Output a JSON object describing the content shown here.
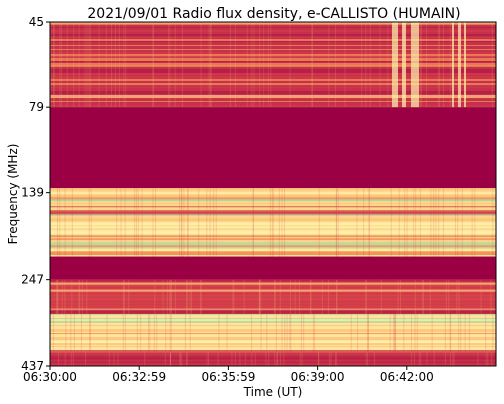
{
  "chart_data": {
    "type": "heatmap",
    "title": "2021/09/01  Radio flux density, e-CALLISTO (HUMAIN)",
    "xlabel": "Time (UT)",
    "ylabel": "Frequency (MHz)",
    "x_ticks": [
      "06:30:00",
      "06:32:59",
      "06:35:59",
      "06:39:00",
      "06:42:00"
    ],
    "y_ticks": [
      "45",
      "79",
      "139",
      "247",
      "437"
    ],
    "y_scale": "log",
    "ylim": [
      45,
      437
    ],
    "colormap": "Spectral_r",
    "colors": {
      "saturated_band": "#9a0043",
      "dark_red": "#b31b47",
      "red": "#d1384a",
      "orange": "#f08a55",
      "light_orange": "#fcc17a",
      "pale_yellow": "#fdf3ad",
      "light_green": "#a6d9a4",
      "green": "#66c2a5"
    },
    "bands": [
      {
        "from": 45,
        "to": 79,
        "level": "mixed-red",
        "color": "#c5304a"
      },
      {
        "from": 79,
        "to": 135,
        "level": "saturated",
        "color": "#9a0043"
      },
      {
        "from": 135,
        "to": 212,
        "level": "mixed-yellow",
        "color": "#fcd98a"
      },
      {
        "from": 212,
        "to": 247,
        "level": "saturated",
        "color": "#9a0043"
      },
      {
        "from": 247,
        "to": 310,
        "level": "mixed-red",
        "color": "#d6444b"
      },
      {
        "from": 310,
        "to": 400,
        "level": "mixed-yellow",
        "color": "#fde59a"
      },
      {
        "from": 400,
        "to": 437,
        "level": "mixed-red",
        "color": "#c02848"
      }
    ]
  }
}
